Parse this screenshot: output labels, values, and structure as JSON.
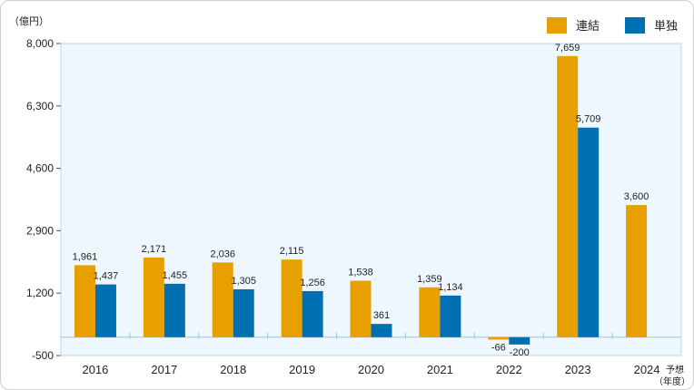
{
  "chart_data": {
    "type": "bar",
    "unit_label": "（億円）",
    "xlabel_unit": "（年度）",
    "categories": [
      "2016",
      "2017",
      "2018",
      "2019",
      "2020",
      "2021",
      "2022",
      "2023",
      "2024"
    ],
    "category_suffix": [
      "",
      "",
      "",
      "",
      "",
      "",
      "",
      "",
      "予想"
    ],
    "ylim": [
      -500,
      8000
    ],
    "yticks": [
      -500,
      1200,
      2900,
      4600,
      6300,
      8000
    ],
    "ytick_labels": [
      "-500",
      "1,200",
      "2,900",
      "4,600",
      "6,300",
      "8,000"
    ],
    "grid": false,
    "legend_position": "top-right",
    "series": [
      {
        "name": "連結",
        "color": "#e8a000",
        "values": [
          1961,
          2171,
          2036,
          2115,
          1538,
          1359,
          -66,
          7659,
          3600
        ],
        "labels": [
          "1,961",
          "2,171",
          "2,036",
          "2,115",
          "1,538",
          "1,359",
          "-66",
          "7,659",
          "3,600"
        ]
      },
      {
        "name": "単独",
        "color": "#0070b3",
        "values": [
          1437,
          1455,
          1305,
          1256,
          361,
          1134,
          -200,
          5709,
          null
        ],
        "labels": [
          "1,437",
          "1,455",
          "1,305",
          "1,256",
          "361",
          "1,134",
          "-200",
          "5,709",
          ""
        ]
      }
    ],
    "negative_label_color": "#e06000",
    "plot_background": "#eef7fd"
  }
}
